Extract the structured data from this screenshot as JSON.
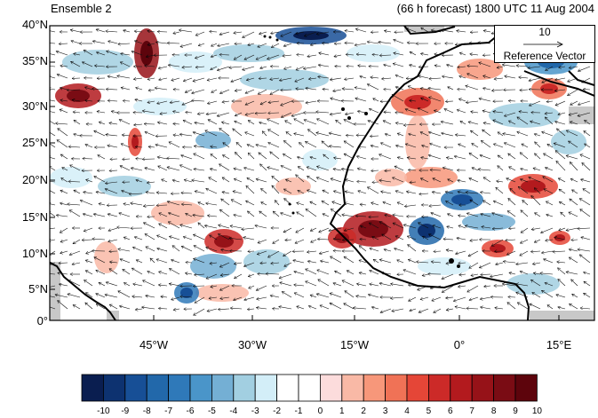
{
  "header": {
    "left_title": "Ensemble 2",
    "right_title": "(66 h forecast) 1800 UTC 11 Aug 2004"
  },
  "lat_labels": [
    "40°N",
    "35°N",
    "30°N",
    "25°N",
    "20°N",
    "15°N",
    "10°N",
    "5°N",
    "0°"
  ],
  "lon_labels": [
    "45°W",
    "30°W",
    "15°W",
    "0°",
    "15°E"
  ],
  "reference_vector": {
    "magnitude": "10",
    "label": "Reference Vector"
  },
  "colorbar": {
    "labels": [
      "-10",
      "-9",
      "-8",
      "-7",
      "-6",
      "-5",
      "-4",
      "-3",
      "-2",
      "-1",
      "0",
      "1",
      "2",
      "3",
      "4",
      "5",
      "6",
      "7",
      "8",
      "9",
      "10"
    ],
    "colors": [
      "#0a1e50",
      "#0d3270",
      "#174f96",
      "#2268aa",
      "#2f79b9",
      "#4a95c9",
      "#74afd4",
      "#a2cfe1",
      "#d3eef8",
      "#ffffff",
      "#ffffff",
      "#fcdcdc",
      "#f9b9a6",
      "#f7977a",
      "#f07256",
      "#e54637",
      "#cc2a28",
      "#b31a1e",
      "#961218",
      "#7a0c14",
      "#5d040c"
    ]
  },
  "land_color": "#c8c8c8"
}
